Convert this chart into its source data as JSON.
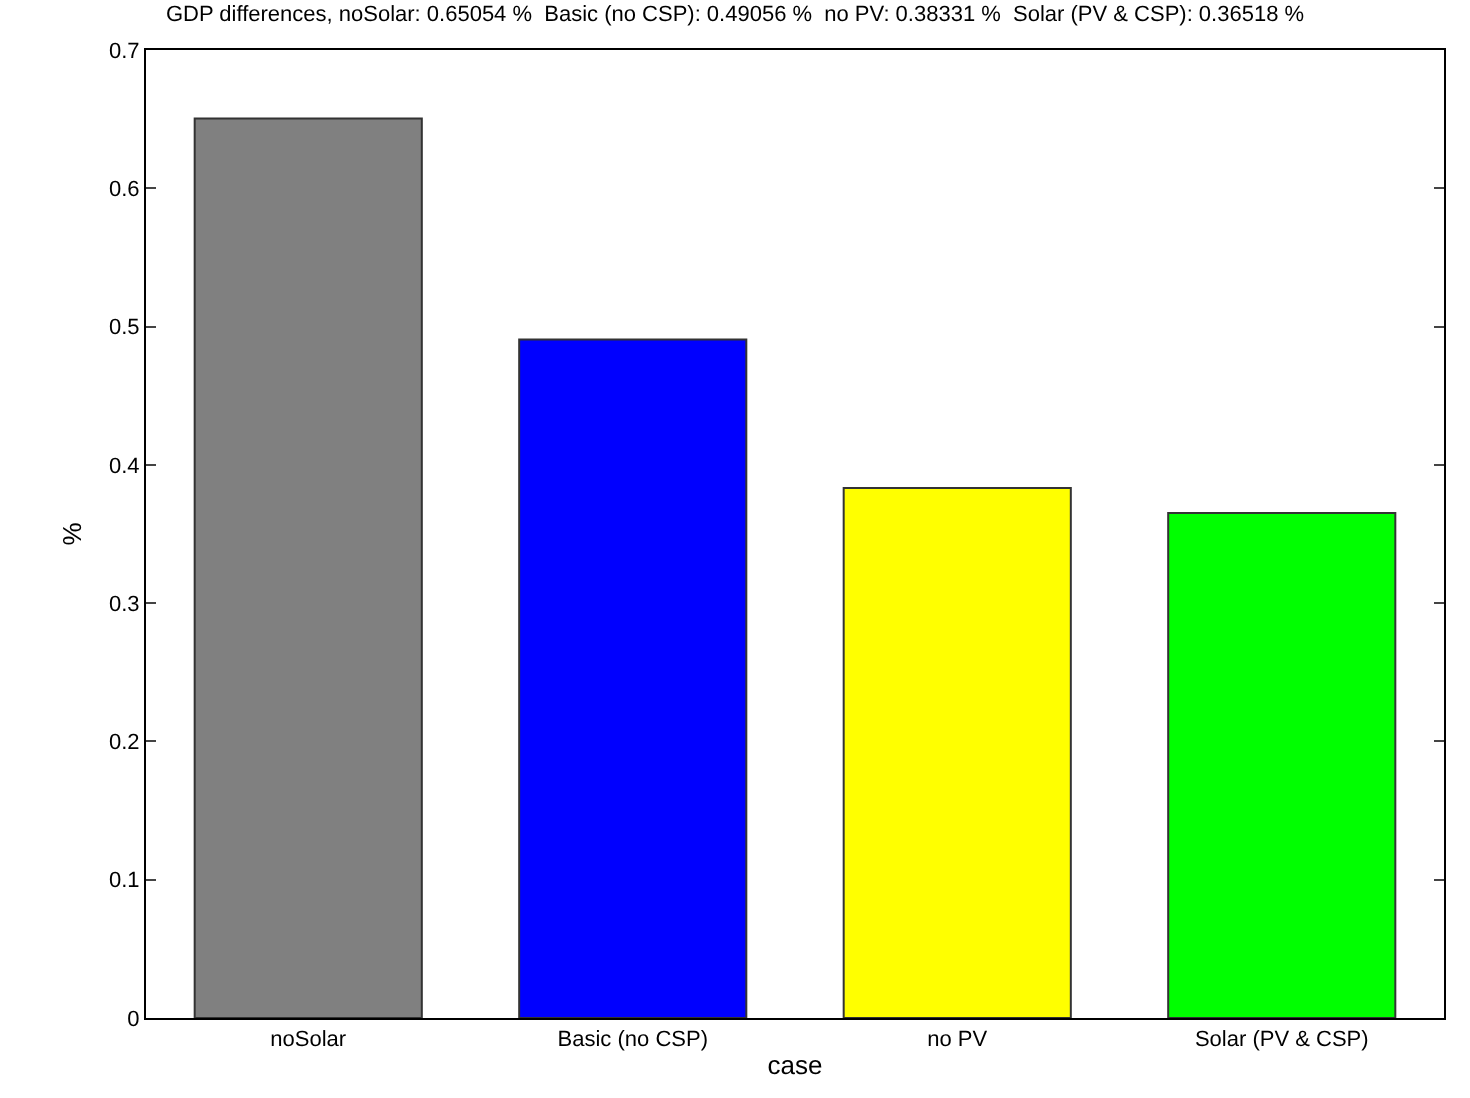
{
  "chart_data": {
    "type": "bar",
    "title": "GDP differences, noSolar: 0.65054 %  Basic (no CSP): 0.49056 %  no PV: 0.38331 %  Solar (PV & CSP): 0.36518 %",
    "xlabel": "case",
    "ylabel": "%",
    "categories": [
      "noSolar",
      "Basic (no CSP)",
      "no PV",
      "Solar (PV & CSP)"
    ],
    "values": [
      0.65054,
      0.49056,
      0.38331,
      0.36518
    ],
    "colors": [
      "#808080",
      "#0000ff",
      "#ffff00",
      "#00ff00"
    ],
    "ylim": [
      0,
      0.7
    ],
    "yticks": [
      0,
      0.1,
      0.2,
      0.3,
      0.4,
      0.5,
      0.6,
      0.7
    ],
    "grid": false
  }
}
